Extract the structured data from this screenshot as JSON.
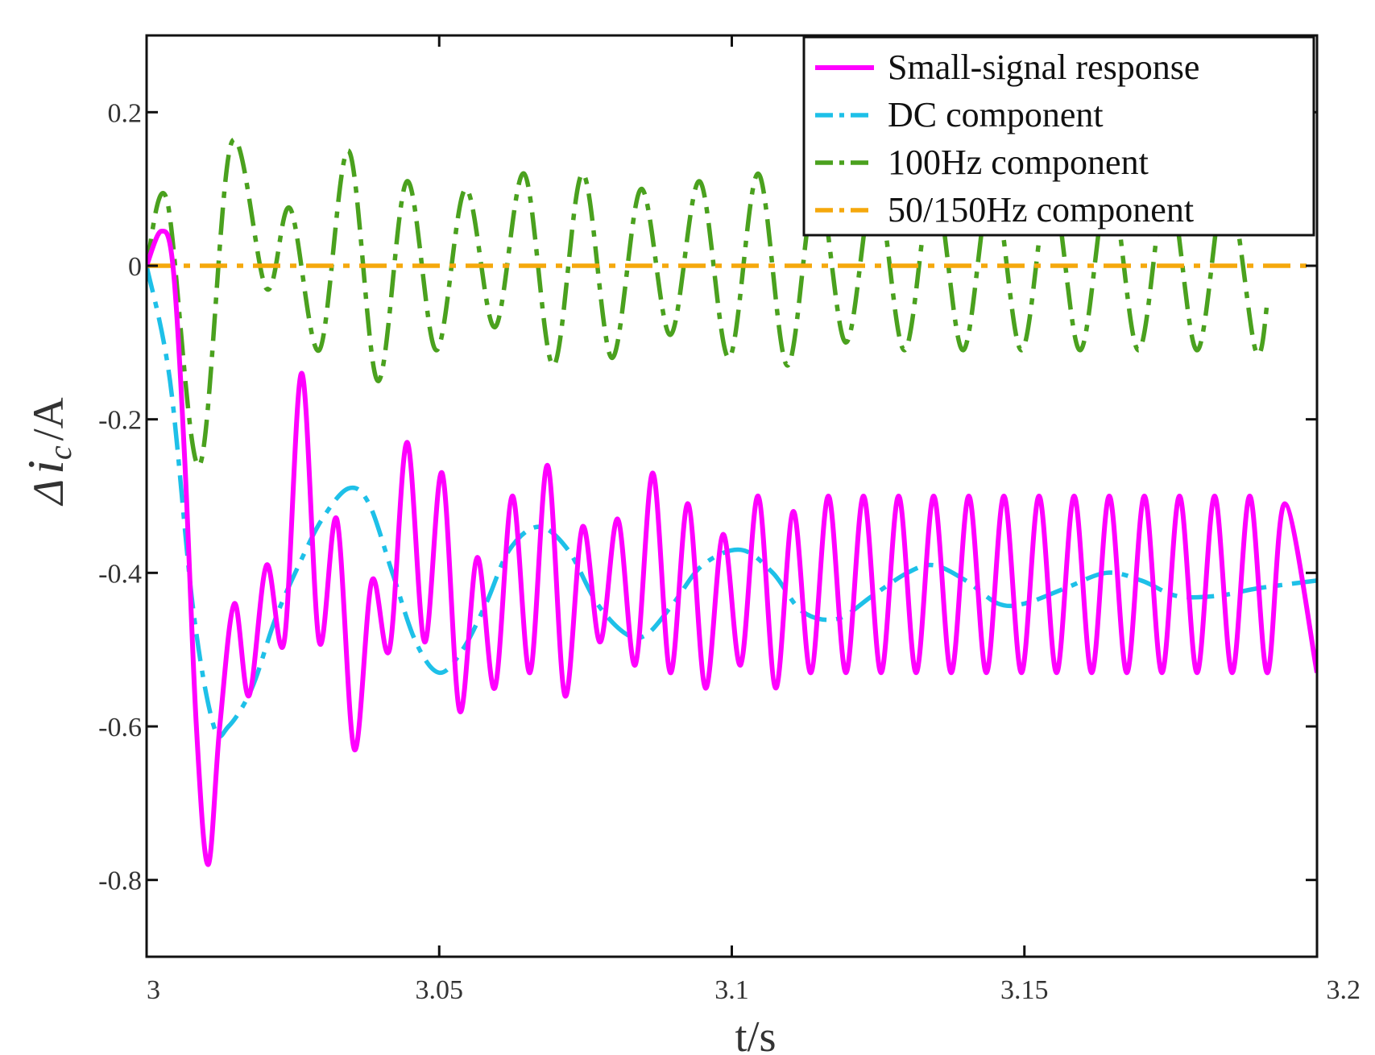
{
  "chart_data": {
    "type": "line",
    "title": "",
    "xlabel": "t/s",
    "ylabel": {
      "prefix": "Δ",
      "symbol": "i",
      "subscript": "c",
      "suffix": "/A"
    },
    "xlim": [
      3.0,
      3.2
    ],
    "ylim": [
      -0.9,
      0.3
    ],
    "xticks": [
      3.0,
      3.05,
      3.1,
      3.15,
      3.2
    ],
    "xtick_labels": [
      "3",
      "3.05",
      "3.1",
      "3.15",
      "3.2"
    ],
    "yticks": [
      0.2,
      0.0,
      -0.2,
      -0.4,
      -0.6,
      -0.8
    ],
    "ytick_labels": [
      "0.2",
      "0",
      "-0.2",
      "-0.4",
      "-0.6",
      "-0.8"
    ],
    "grid": false,
    "legend_position": "top-right",
    "series": [
      {
        "name": "Small-signal response",
        "color": "#ff00ff",
        "style": "solid",
        "x": [
          3.0,
          3.0025,
          3.0045,
          3.0065,
          3.0085,
          3.0105,
          3.0125,
          3.015,
          3.0175,
          3.0205,
          3.0235,
          3.0265,
          3.0295,
          3.0325,
          3.0355,
          3.0385,
          3.0415,
          3.0445,
          3.0475,
          3.0505,
          3.0535,
          3.0565,
          3.0595,
          3.0625,
          3.0655,
          3.0685,
          3.0715,
          3.0745,
          3.0775,
          3.0805,
          3.0835,
          3.0865,
          3.0895,
          3.0925,
          3.0955,
          3.0985,
          3.1015,
          3.1045,
          3.1075,
          3.1105,
          3.1135,
          3.1165,
          3.1195,
          3.1225,
          3.1255,
          3.1285,
          3.1315,
          3.1345,
          3.1375,
          3.1405,
          3.1435,
          3.1465,
          3.1495,
          3.1525,
          3.1555,
          3.1585,
          3.1615,
          3.1645,
          3.1675,
          3.1705,
          3.1735,
          3.1765,
          3.1795,
          3.1825,
          3.1855,
          3.1885,
          3.1915,
          3.1945,
          3.2
        ],
        "values": [
          0.0,
          0.045,
          0.0,
          -0.25,
          -0.6,
          -0.78,
          -0.6,
          -0.44,
          -0.56,
          -0.39,
          -0.49,
          -0.14,
          -0.49,
          -0.33,
          -0.63,
          -0.41,
          -0.5,
          -0.23,
          -0.49,
          -0.27,
          -0.58,
          -0.38,
          -0.55,
          -0.3,
          -0.53,
          -0.26,
          -0.56,
          -0.34,
          -0.49,
          -0.33,
          -0.52,
          -0.27,
          -0.53,
          -0.31,
          -0.55,
          -0.35,
          -0.52,
          -0.3,
          -0.55,
          -0.32,
          -0.53,
          -0.3,
          -0.53,
          -0.3,
          -0.53,
          -0.3,
          -0.53,
          -0.3,
          -0.53,
          -0.3,
          -0.53,
          -0.3,
          -0.53,
          -0.3,
          -0.53,
          -0.3,
          -0.53,
          -0.3,
          -0.53,
          -0.3,
          -0.53,
          -0.3,
          -0.53,
          -0.3,
          -0.53,
          -0.3,
          -0.53,
          -0.31,
          -0.53
        ]
      },
      {
        "name": "DC component",
        "color": "#1ec0e8",
        "style": "dashdot",
        "x": [
          3.0,
          3.004,
          3.008,
          3.0115,
          3.014,
          3.018,
          3.022,
          3.026,
          3.03,
          3.0345,
          3.038,
          3.042,
          3.046,
          3.05,
          3.054,
          3.058,
          3.062,
          3.067,
          3.072,
          3.077,
          3.082,
          3.0855,
          3.09,
          3.095,
          3.1015,
          3.107,
          3.112,
          3.118,
          3.124,
          3.13,
          3.1345,
          3.14,
          3.1455,
          3.15,
          3.157,
          3.164,
          3.17,
          3.176,
          3.183,
          3.19,
          3.2
        ],
        "values": [
          0.0,
          -0.15,
          -0.45,
          -0.6,
          -0.6,
          -0.55,
          -0.46,
          -0.39,
          -0.33,
          -0.29,
          -0.31,
          -0.4,
          -0.49,
          -0.53,
          -0.5,
          -0.44,
          -0.37,
          -0.34,
          -0.37,
          -0.44,
          -0.48,
          -0.48,
          -0.44,
          -0.39,
          -0.37,
          -0.4,
          -0.45,
          -0.46,
          -0.43,
          -0.4,
          -0.39,
          -0.41,
          -0.44,
          -0.44,
          -0.42,
          -0.4,
          -0.41,
          -0.43,
          -0.43,
          -0.42,
          -0.41
        ]
      },
      {
        "name": "100Hz component",
        "color": "#4aa11e",
        "style": "dashdot",
        "x": [
          3.0,
          3.0035,
          3.009,
          3.0145,
          3.0205,
          3.0245,
          3.0295,
          3.0345,
          3.0395,
          3.0445,
          3.0495,
          3.0545,
          3.0595,
          3.0645,
          3.0695,
          3.0745,
          3.0795,
          3.0845,
          3.0895,
          3.0945,
          3.0995,
          3.1045,
          3.1095,
          3.1145,
          3.1195,
          3.1245,
          3.1295,
          3.1345,
          3.1395,
          3.1445,
          3.1495,
          3.1545,
          3.1595,
          3.1645,
          3.1695,
          3.1745,
          3.1795,
          3.1845,
          3.1895,
          3.1915
        ],
        "values": [
          0.0,
          0.085,
          -0.26,
          0.16,
          -0.03,
          0.075,
          -0.11,
          0.15,
          -0.15,
          0.11,
          -0.11,
          0.1,
          -0.08,
          0.12,
          -0.13,
          0.12,
          -0.12,
          0.1,
          -0.09,
          0.11,
          -0.12,
          0.12,
          -0.13,
          0.11,
          -0.1,
          0.11,
          -0.11,
          0.11,
          -0.11,
          0.11,
          -0.11,
          0.11,
          -0.11,
          0.11,
          -0.11,
          0.11,
          -0.11,
          0.11,
          -0.11,
          -0.05
        ]
      },
      {
        "name": "50/150Hz component",
        "color": "#f5a80c",
        "style": "dashdot",
        "x": [
          3.0,
          3.2
        ],
        "values": [
          0.0,
          0.0
        ]
      }
    ]
  }
}
